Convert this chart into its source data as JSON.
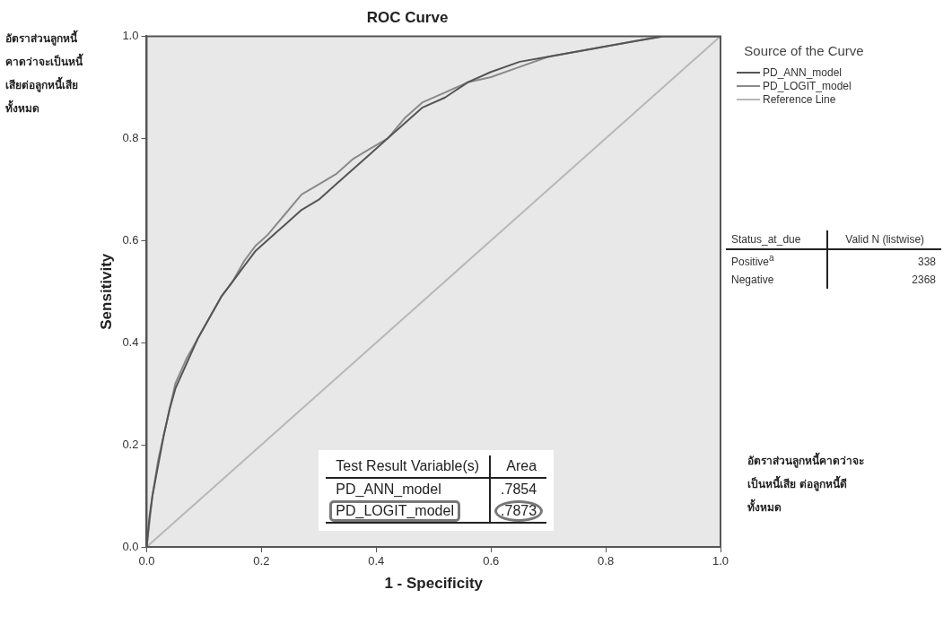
{
  "chart_data": {
    "type": "line",
    "title": "ROC Curve",
    "xlabel": "1 - Specificity",
    "ylabel": "Sensitivity",
    "legend_title": "Source of the Curve",
    "legend": "top right",
    "marker": "none",
    "grid": false,
    "xlim": [
      0,
      1
    ],
    "ylim": [
      0,
      1
    ],
    "xticks": [
      {
        "value": 0,
        "label": "0.0"
      },
      0.2,
      0.4,
      0.6,
      0.8,
      {
        "value": 1,
        "label": "1.0"
      }
    ],
    "yticks": [
      {
        "value": 0,
        "label": "0.0"
      },
      0.2,
      0.4,
      0.6,
      0.8,
      {
        "value": 1,
        "label": "1.0"
      }
    ],
    "series": [
      {
        "name": "PD_ANN_model",
        "color": "#555555",
        "x": [
          0,
          0.005,
          0.01,
          0.02,
          0.03,
          0.04,
          0.05,
          0.07,
          0.09,
          0.11,
          0.13,
          0.15,
          0.17,
          0.19,
          0.21,
          0.24,
          0.27,
          0.3,
          0.33,
          0.36,
          0.39,
          0.42,
          0.45,
          0.48,
          0.52,
          0.56,
          0.6,
          0.65,
          0.7,
          0.75,
          0.8,
          0.85,
          0.9,
          1
        ],
        "values": [
          0,
          0.06,
          0.1,
          0.16,
          0.22,
          0.27,
          0.31,
          0.36,
          0.41,
          0.45,
          0.49,
          0.52,
          0.55,
          0.58,
          0.6,
          0.63,
          0.66,
          0.68,
          0.71,
          0.74,
          0.77,
          0.8,
          0.83,
          0.86,
          0.88,
          0.91,
          0.93,
          0.95,
          0.96,
          0.97,
          0.98,
          0.99,
          1,
          1
        ]
      },
      {
        "name": "PD_LOGIT_model",
        "color": "#8a8a8a",
        "x": [
          0,
          0.005,
          0.01,
          0.02,
          0.03,
          0.04,
          0.05,
          0.07,
          0.09,
          0.11,
          0.13,
          0.15,
          0.17,
          0.19,
          0.21,
          0.24,
          0.27,
          0.3,
          0.33,
          0.36,
          0.39,
          0.42,
          0.45,
          0.48,
          0.52,
          0.56,
          0.6,
          0.65,
          0.7,
          0.75,
          0.8,
          0.85,
          0.9,
          1
        ],
        "values": [
          0,
          0.05,
          0.1,
          0.17,
          0.22,
          0.27,
          0.32,
          0.37,
          0.41,
          0.45,
          0.49,
          0.52,
          0.56,
          0.59,
          0.61,
          0.65,
          0.69,
          0.71,
          0.73,
          0.76,
          0.78,
          0.8,
          0.84,
          0.87,
          0.89,
          0.91,
          0.92,
          0.94,
          0.96,
          0.97,
          0.98,
          0.99,
          1,
          1
        ]
      },
      {
        "name": "Reference Line",
        "color": "#b8b8b8",
        "x": [
          0,
          1
        ],
        "values": [
          0,
          1
        ]
      }
    ],
    "annotations": [
      "อัตราส่วนลูกหนี้คาดว่าจะเป็นหนี้เสียต่อลูกหนี้เสียทั้งหมด",
      "อัตราส่วนลูกหนี้คาดว่าจะเป็นหนี้เสีย ต่อลูกหนี้ดีทั้งหมด",
      "Test Result Variable(s)",
      "Area",
      "PD_ANN_model",
      ".7854",
      "PD_LOGIT_model",
      ".7873",
      "Status_at_due",
      "Valid N (listwise)",
      "Positive$^{a}$",
      "338",
      "Negative",
      "2368"
    ]
  }
}
